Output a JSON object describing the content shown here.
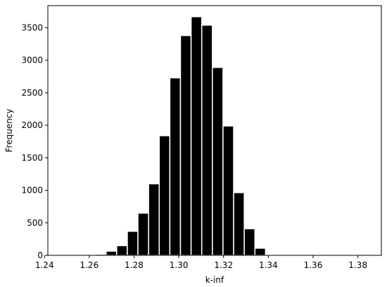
{
  "chart_data": {
    "type": "bar",
    "xlabel": "k-inf",
    "ylabel": "Frequency",
    "xlim": [
      1.2415,
      1.3905
    ],
    "ylim": [
      0,
      3840
    ],
    "xticks": [
      1.24,
      1.26,
      1.28,
      1.3,
      1.32,
      1.34,
      1.36,
      1.38
    ],
    "xtick_labels": [
      "1.24",
      "1.26",
      "1.28",
      "1.30",
      "1.32",
      "1.34",
      "1.36",
      "1.38"
    ],
    "yticks": [
      0,
      500,
      1000,
      1500,
      2000,
      2500,
      3000,
      3500
    ],
    "ytick_labels": [
      "0",
      "500",
      "1000",
      "1500",
      "2000",
      "2500",
      "3000",
      "3500"
    ],
    "bin_width": 0.00475,
    "bins": [
      {
        "x0": 1.2485,
        "count": 1
      },
      {
        "x0": 1.25325,
        "count": 2
      },
      {
        "x0": 1.258,
        "count": 5
      },
      {
        "x0": 1.26275,
        "count": 18
      },
      {
        "x0": 1.2675,
        "count": 65
      },
      {
        "x0": 1.27225,
        "count": 150
      },
      {
        "x0": 1.277,
        "count": 370
      },
      {
        "x0": 1.28175,
        "count": 650
      },
      {
        "x0": 1.2865,
        "count": 1100
      },
      {
        "x0": 1.29125,
        "count": 1840
      },
      {
        "x0": 1.296,
        "count": 2730
      },
      {
        "x0": 1.30075,
        "count": 3380
      },
      {
        "x0": 1.3055,
        "count": 3670
      },
      {
        "x0": 1.31025,
        "count": 3540
      },
      {
        "x0": 1.315,
        "count": 2890
      },
      {
        "x0": 1.31975,
        "count": 1990
      },
      {
        "x0": 1.3245,
        "count": 965
      },
      {
        "x0": 1.32925,
        "count": 410
      },
      {
        "x0": 1.334,
        "count": 110
      },
      {
        "x0": 1.33875,
        "count": 15
      },
      {
        "x0": 1.3435,
        "count": 2
      }
    ],
    "bar_color": "#000000",
    "edge_color": "#ffffff",
    "grid": false,
    "legend": "none"
  }
}
